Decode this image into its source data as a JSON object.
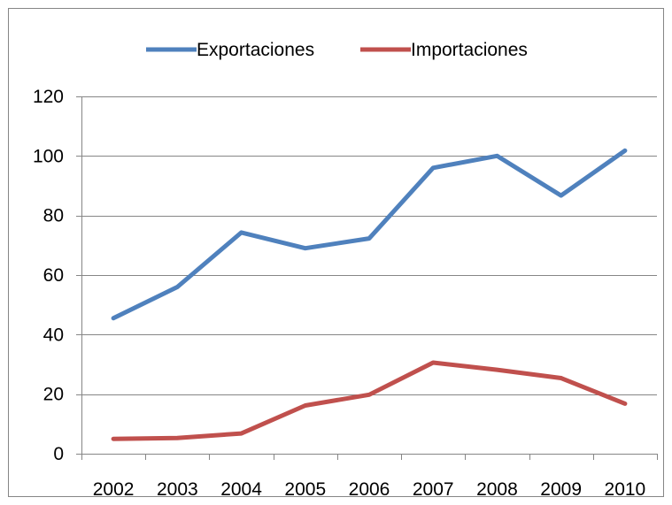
{
  "chart_data": {
    "type": "line",
    "categories": [
      "2002",
      "2003",
      "2004",
      "2005",
      "2006",
      "2007",
      "2008",
      "2009",
      "2010"
    ],
    "series": [
      {
        "name": "Exportaciones",
        "color": "#4f81bd",
        "values": [
          45.5,
          56,
          74.3,
          69,
          72.3,
          96,
          100,
          86.7,
          101.8
        ]
      },
      {
        "name": "Importaciones",
        "color": "#c0504d",
        "values": [
          5,
          5.3,
          6.8,
          16.2,
          19.8,
          30.6,
          28.2,
          25.4,
          16.8
        ]
      }
    ],
    "yticks": [
      "0",
      "20",
      "40",
      "60",
      "80",
      "100",
      "120"
    ],
    "ylim": [
      0,
      120
    ],
    "grid": true,
    "legend": "top"
  }
}
